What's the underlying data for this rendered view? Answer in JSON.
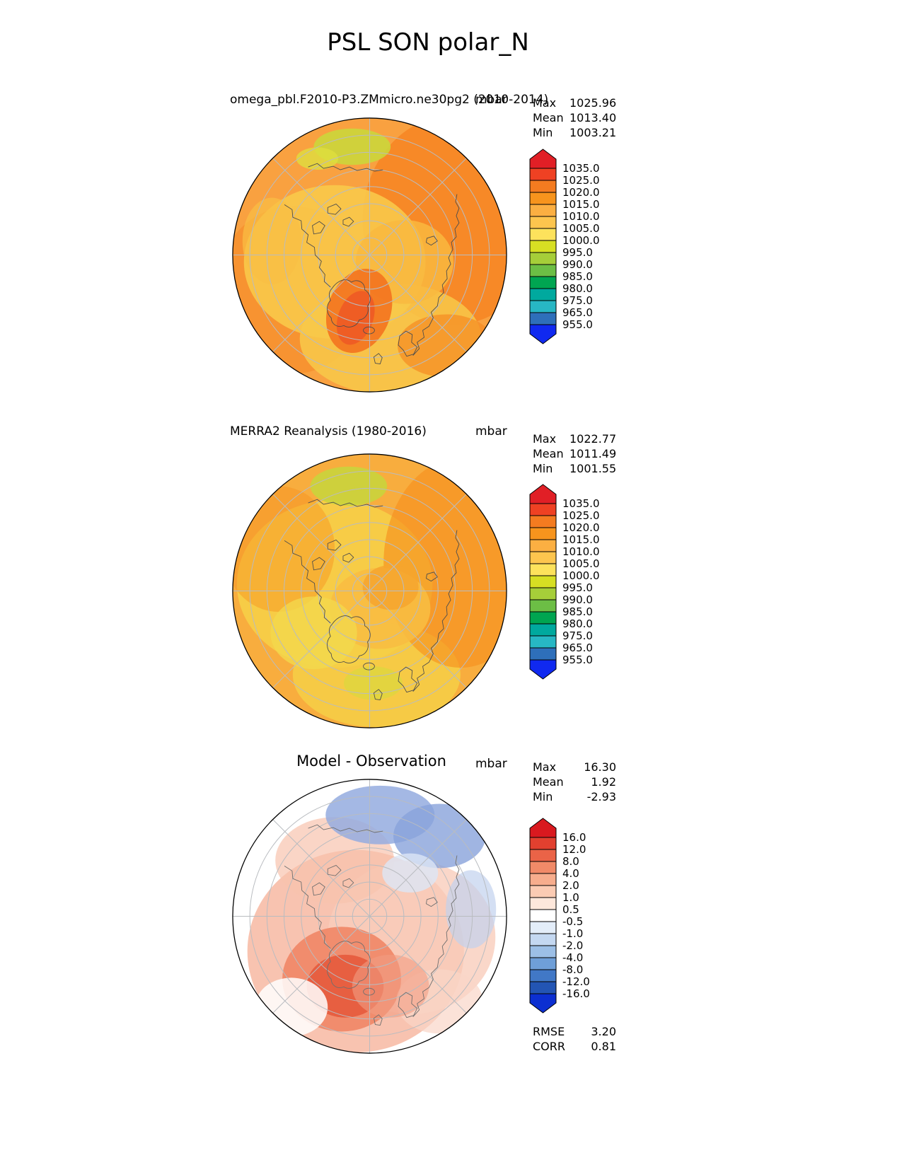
{
  "page_title": "PSL SON polar_N",
  "panels": [
    {
      "title": "omega_pbl.F2010-P3.ZMmicro.ne30pg2 (2010-2014)",
      "units": "mbar",
      "stats": [
        {
          "label": "Max",
          "value": "1025.96"
        },
        {
          "label": "Mean",
          "value": "1013.40"
        },
        {
          "label": "Min",
          "value": "1003.21"
        }
      ],
      "colorbar": {
        "labels": [
          "1035.0",
          "1025.0",
          "1020.0",
          "1015.0",
          "1010.0",
          "1005.0",
          "1000.0",
          "995.0",
          "990.0",
          "985.0",
          "980.0",
          "975.0",
          "965.0",
          "955.0"
        ],
        "colors": [
          "#e11f26",
          "#ef4123",
          "#f47b20",
          "#f7941d",
          "#fbaf42",
          "#fdc54e",
          "#fde25c",
          "#d7df23",
          "#a6ce39",
          "#6cbe45",
          "#00a551",
          "#00a99e",
          "#27b7c4",
          "#2e6fba",
          "#1029f0"
        ]
      }
    },
    {
      "title": "MERRA2 Reanalysis (1980-2016)",
      "units": "mbar",
      "stats": [
        {
          "label": "Max",
          "value": "1022.77"
        },
        {
          "label": "Mean",
          "value": "1011.49"
        },
        {
          "label": "Min",
          "value": "1001.55"
        }
      ],
      "colorbar": {
        "labels": [
          "1035.0",
          "1025.0",
          "1020.0",
          "1015.0",
          "1010.0",
          "1005.0",
          "1000.0",
          "995.0",
          "990.0",
          "985.0",
          "980.0",
          "975.0",
          "965.0",
          "955.0"
        ],
        "colors": [
          "#e11f26",
          "#ef4123",
          "#f47b20",
          "#f7941d",
          "#fbaf42",
          "#fdc54e",
          "#fde25c",
          "#d7df23",
          "#a6ce39",
          "#6cbe45",
          "#00a551",
          "#00a99e",
          "#27b7c4",
          "#2e6fba",
          "#1029f0"
        ]
      }
    },
    {
      "title": "Model - Observation",
      "units": "mbar",
      "stats": [
        {
          "label": "Max",
          "value": "16.30"
        },
        {
          "label": "Mean",
          "value": "1.92"
        },
        {
          "label": "Min",
          "value": "-2.93"
        }
      ],
      "colorbar": {
        "labels": [
          "16.0",
          "12.0",
          "8.0",
          "4.0",
          "2.0",
          "1.0",
          "0.5",
          "-0.5",
          "-1.0",
          "-2.0",
          "-4.0",
          "-8.0",
          "-12.0",
          "-16.0"
        ],
        "colors": [
          "#d9191f",
          "#e2402f",
          "#ea6347",
          "#f18a68",
          "#f7ad8d",
          "#fbcbb3",
          "#fde7db",
          "#ffffff",
          "#e3edf9",
          "#c4d8f1",
          "#9cbfe6",
          "#6f9fd8",
          "#4178c6",
          "#2355b4",
          "#0c2fd1"
        ]
      },
      "extra_stats": [
        {
          "label": "RMSE",
          "value": "3.20"
        },
        {
          "label": "CORR",
          "value": "0.81"
        }
      ]
    }
  ],
  "chart_data": [
    {
      "type": "heatmap",
      "subtype": "polar_contour_map",
      "projection": "north_polar_stereographic",
      "title": "omega_pbl.F2010-P3.ZMmicro.ne30pg2 (2010-2014)",
      "units": "mbar",
      "stats": {
        "max": 1025.96,
        "mean": 1013.4,
        "min": 1003.21
      },
      "contour_levels": [
        955.0,
        965.0,
        975.0,
        980.0,
        985.0,
        990.0,
        995.0,
        1000.0,
        1005.0,
        1010.0,
        1015.0,
        1020.0,
        1025.0,
        1035.0
      ],
      "colorbar_position": "right",
      "legend_position": "right"
    },
    {
      "type": "heatmap",
      "subtype": "polar_contour_map",
      "projection": "north_polar_stereographic",
      "title": "MERRA2 Reanalysis (1980-2016)",
      "units": "mbar",
      "stats": {
        "max": 1022.77,
        "mean": 1011.49,
        "min": 1001.55
      },
      "contour_levels": [
        955.0,
        965.0,
        975.0,
        980.0,
        985.0,
        990.0,
        995.0,
        1000.0,
        1005.0,
        1010.0,
        1015.0,
        1020.0,
        1025.0,
        1035.0
      ],
      "colorbar_position": "right",
      "legend_position": "right"
    },
    {
      "type": "heatmap",
      "subtype": "polar_contour_map",
      "projection": "north_polar_stereographic",
      "title": "Model - Observation",
      "units": "mbar",
      "stats": {
        "max": 16.3,
        "mean": 1.92,
        "min": -2.93,
        "rmse": 3.2,
        "corr": 0.81
      },
      "contour_levels": [
        -16.0,
        -12.0,
        -8.0,
        -4.0,
        -2.0,
        -1.0,
        -0.5,
        0.5,
        1.0,
        2.0,
        4.0,
        8.0,
        12.0,
        16.0
      ],
      "colorbar_position": "right",
      "legend_position": "right"
    }
  ]
}
